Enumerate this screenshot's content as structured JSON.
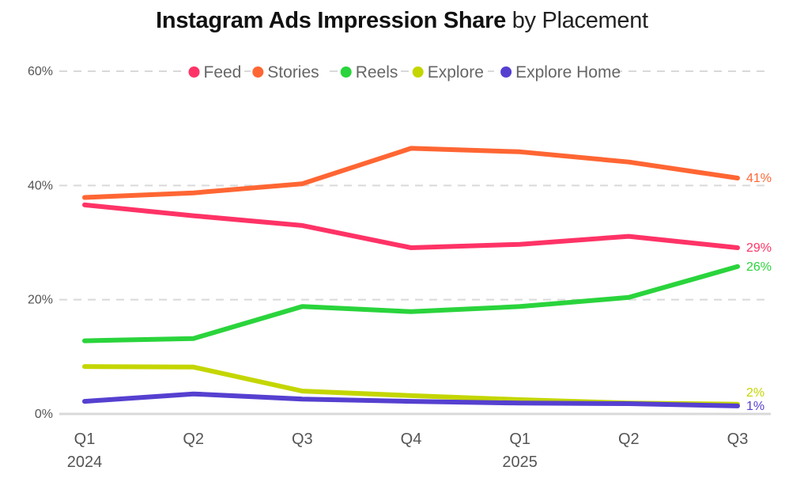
{
  "chart_data": {
    "type": "line",
    "title_bold": "Instagram Ads Impression Share",
    "title_light": "by Placement",
    "xlabel": "",
    "ylabel": "",
    "ylim": [
      0,
      60
    ],
    "y_ticks": [
      0,
      20,
      40,
      60
    ],
    "y_tick_labels": [
      "0%",
      "20%",
      "40%",
      "60%"
    ],
    "grid": true,
    "legend_position": "top",
    "x": [
      "Q1 2024",
      "Q2 2024",
      "Q3 2024",
      "Q4 2024",
      "Q1 2025",
      "Q2 2025",
      "Q3 2025"
    ],
    "x_tick_labels": [
      "Q1",
      "Q2",
      "Q3",
      "Q4",
      "Q1",
      "Q2",
      "Q3"
    ],
    "x_group_labels": [
      {
        "label": "2024",
        "index": 0
      },
      {
        "label": "2025",
        "index": 4
      }
    ],
    "series": [
      {
        "name": "Feed",
        "color": "#FF3366",
        "values": [
          36.6,
          34.7,
          33.0,
          29.1,
          29.7,
          31.1,
          29.1
        ],
        "end_label": "29%"
      },
      {
        "name": "Stories",
        "color": "#FF6633",
        "values": [
          37.9,
          38.7,
          40.3,
          46.5,
          45.9,
          44.1,
          41.3
        ],
        "end_label": "41%"
      },
      {
        "name": "Reels",
        "color": "#2AD43C",
        "values": [
          12.8,
          13.2,
          18.8,
          17.9,
          18.8,
          20.4,
          25.8
        ],
        "end_label": "26%"
      },
      {
        "name": "Explore",
        "color": "#C4D600",
        "values": [
          8.3,
          8.2,
          4.0,
          3.2,
          2.5,
          1.9,
          1.7
        ],
        "end_label": "2%"
      },
      {
        "name": "Explore Home",
        "color": "#5540D0",
        "values": [
          2.2,
          3.5,
          2.6,
          2.2,
          1.9,
          1.8,
          1.4
        ],
        "end_label": "1%"
      }
    ]
  },
  "colors": {
    "grid": "#D9D9D9",
    "axis": "#D9D9D9",
    "text": "#555555"
  }
}
